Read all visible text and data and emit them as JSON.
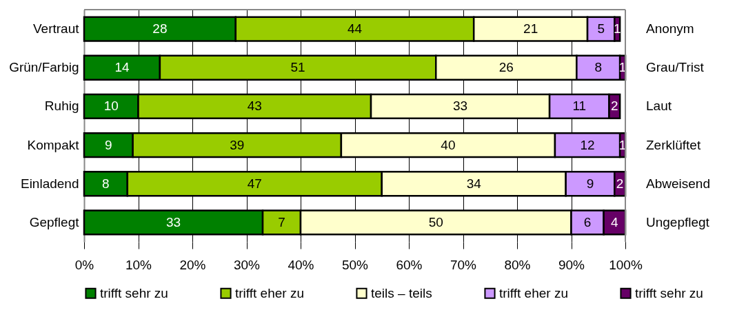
{
  "chart_data": {
    "type": "bar",
    "orientation": "horizontal",
    "stacked": true,
    "grid": "x",
    "legend": "bottom",
    "categories": [
      "Vertraut",
      "Grün/Farbig",
      "Ruhig",
      "Kompakt",
      "Einladend",
      "Gepflegt"
    ],
    "annotations": [
      "Anonym",
      "Grau/Trist",
      "Laut",
      "Zerklüftet",
      "Abweisend",
      "Ungepflegt"
    ],
    "xlim": [
      0,
      100
    ],
    "xticks": [
      {
        "value": 0,
        "label": "0%"
      },
      {
        "value": 10,
        "label": "10%"
      },
      {
        "value": 20,
        "label": "20%"
      },
      {
        "value": 30,
        "label": "30%"
      },
      {
        "value": 40,
        "label": "40%"
      },
      {
        "value": 50,
        "label": "50%"
      },
      {
        "value": 60,
        "label": "60%"
      },
      {
        "value": 70,
        "label": "70%"
      },
      {
        "value": 80,
        "label": "80%"
      },
      {
        "value": 90,
        "label": "90%"
      },
      {
        "value": 100,
        "label": "100%"
      }
    ],
    "series": [
      {
        "name": "trifft sehr zu",
        "color": "#008000",
        "values": [
          28,
          14,
          10,
          9,
          8,
          33
        ],
        "value_labels": [
          "28",
          "14",
          "10",
          "9",
          "8",
          "33"
        ]
      },
      {
        "name": "trifft eher zu",
        "color": "#99cc00",
        "values": [
          44,
          51,
          43,
          38.5,
          47,
          7
        ],
        "value_labels": [
          "44",
          "51",
          "43",
          "39",
          "47",
          "7"
        ]
      },
      {
        "name": "teils – teils",
        "color": "#ffffcc",
        "values": [
          21,
          26,
          33,
          39.5,
          34,
          50
        ],
        "value_labels": [
          "21",
          "26",
          "33",
          "40",
          "34",
          "50"
        ]
      },
      {
        "name": "trifft eher zu",
        "color": "#cc99ff",
        "values": [
          5,
          8,
          11,
          12,
          9,
          6
        ],
        "value_labels": [
          "5",
          "8",
          "11",
          "12",
          "9",
          "6"
        ]
      },
      {
        "name": "trifft sehr zu",
        "color": "#660066",
        "values": [
          1,
          1,
          2,
          1,
          2,
          4
        ],
        "value_labels": [
          "1",
          "1",
          "2",
          "1",
          "2",
          "4"
        ]
      }
    ]
  }
}
